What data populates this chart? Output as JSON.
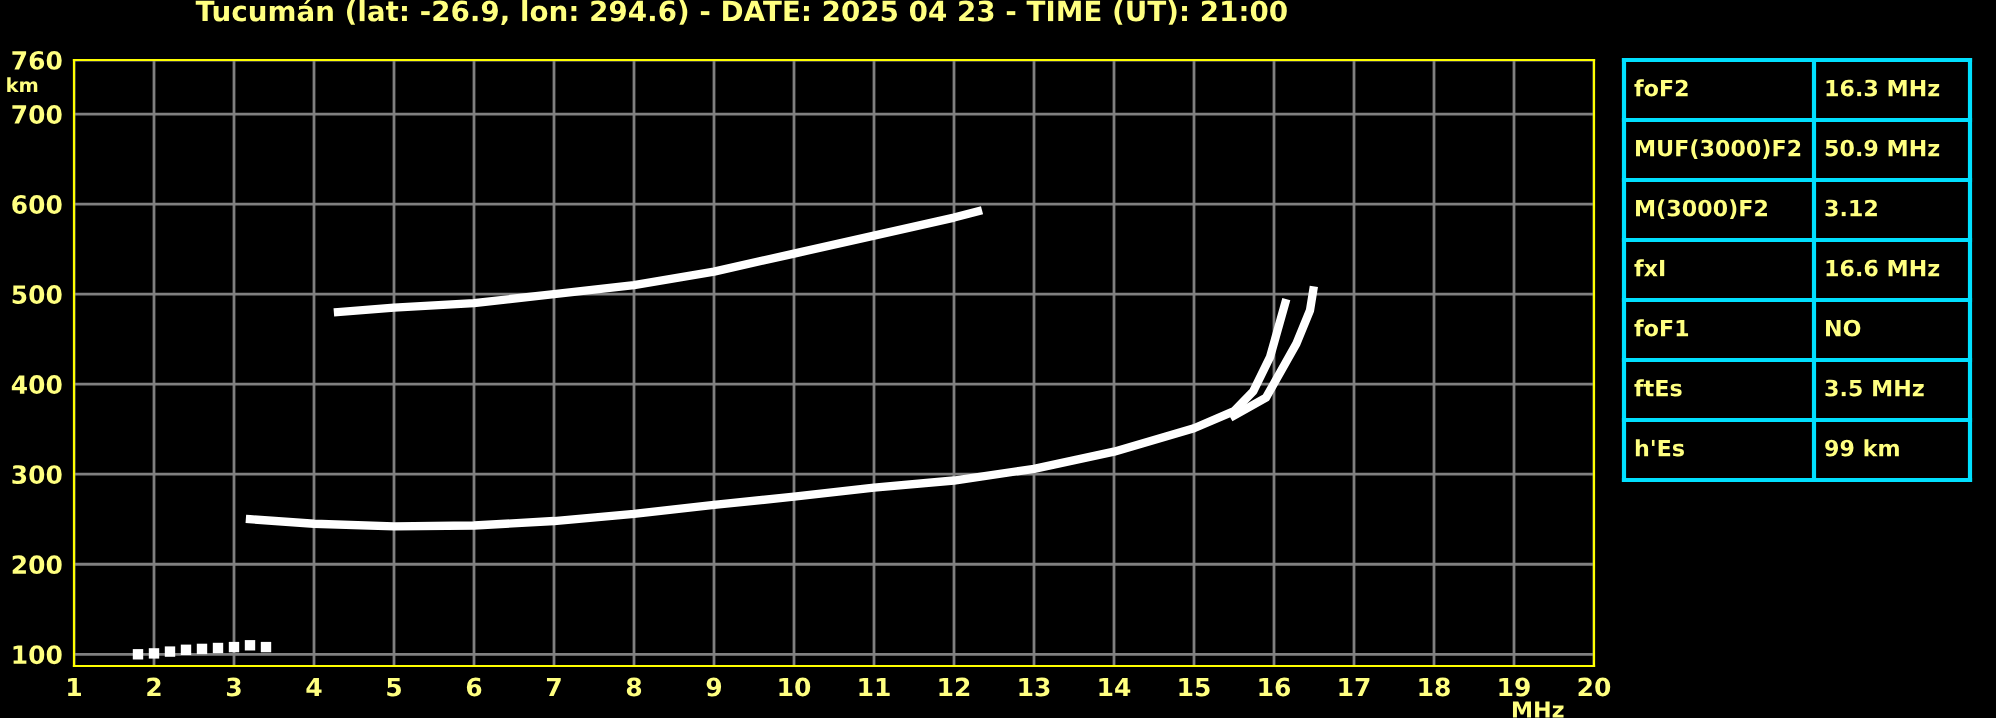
{
  "chart_data": {
    "type": "line",
    "title": "Tucumán (lat: -26.9, lon: 294.6) - DATE: 2025 04 23 - TIME (UT): 21:00",
    "xlabel": "MHz",
    "ylabel": "km",
    "xlim": [
      1,
      20
    ],
    "ylim": [
      87,
      760
    ],
    "xticks": [
      1,
      2,
      3,
      4,
      5,
      6,
      7,
      8,
      9,
      10,
      11,
      12,
      13,
      14,
      15,
      16,
      17,
      18,
      19,
      20
    ],
    "yticks": [
      100,
      200,
      300,
      400,
      500,
      600,
      700,
      760
    ],
    "grid": true,
    "line_style": "solid",
    "series": [
      {
        "type": "scatter",
        "marker": "square",
        "color": "#ffffff",
        "x": [
          1.8,
          2.0,
          2.2,
          2.4,
          2.6,
          2.8,
          3.0,
          3.2,
          3.4
        ],
        "values": [
          100,
          101,
          103,
          105,
          106,
          107,
          108,
          110,
          108
        ]
      },
      {
        "color": "#ffffff",
        "x": [
          3.2,
          4,
          5,
          6,
          7,
          8,
          9,
          10,
          11,
          12,
          13,
          14,
          15,
          15.5,
          15.74,
          15.95,
          16.14
        ],
        "values": [
          250,
          245,
          242,
          243,
          248,
          256,
          266,
          275,
          285,
          293,
          306,
          325,
          351,
          370,
          392,
          430,
          490
        ]
      },
      {
        "color": "#ffffff",
        "x": [
          15.5,
          15.9,
          16.28,
          16.45,
          16.49
        ],
        "values": [
          365,
          385,
          445,
          482,
          504
        ]
      },
      {
        "color": "#ffffff",
        "x": [
          4.3,
          5,
          6,
          7,
          8,
          9,
          10,
          11,
          12,
          12.3
        ],
        "values": [
          480,
          485,
          490,
          500,
          510,
          525,
          545,
          565,
          585,
          592
        ]
      }
    ],
    "annotations": [
      "foF2",
      "16.3 MHz",
      "MUF(3000)F2",
      "50.9 MHz",
      "M(3000)F2",
      "3.12",
      "fxI",
      "16.6 MHz",
      "foF1",
      "NO",
      "ftEs",
      "3.5 MHz",
      "h'Es",
      "99 km"
    ]
  }
}
